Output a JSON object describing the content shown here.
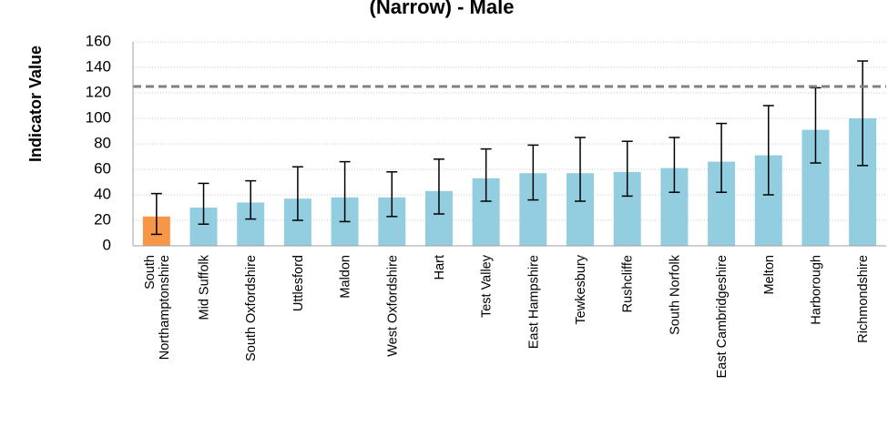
{
  "chart_data": {
    "type": "bar",
    "title": "(Narrow) - Male",
    "ylabel": "Indicator Value",
    "xlabel": "",
    "ylim": [
      0,
      160
    ],
    "yticks": [
      0,
      20,
      40,
      60,
      80,
      100,
      120,
      140,
      160
    ],
    "grid": true,
    "categories": [
      "South Northamptonshire",
      "Mid Suffolk",
      "South Oxfordshire",
      "Uttlesford",
      "Maldon",
      "West Oxfordshire",
      "Hart",
      "Test Valley",
      "East Hampshire",
      "Tewkesbury",
      "Rushcliffe",
      "South Norfolk",
      "East Cambridgeshire",
      "Melton",
      "Harborough",
      "Richmondshire"
    ],
    "category_lines": [
      [
        "South",
        "Northamptonshire"
      ],
      [
        "Mid Suffolk"
      ],
      [
        "South Oxfordshire"
      ],
      [
        "Uttlesford"
      ],
      [
        "Maldon"
      ],
      [
        "West Oxfordshire"
      ],
      [
        "Hart"
      ],
      [
        "Test Valley"
      ],
      [
        "East Hampshire"
      ],
      [
        "Tewkesbury"
      ],
      [
        "Rushcliffe"
      ],
      [
        "South Norfolk"
      ],
      [
        "East Cambridgeshire"
      ],
      [
        "Melton"
      ],
      [
        "Harborough"
      ],
      [
        "Richmondshire"
      ]
    ],
    "values": [
      23,
      30,
      34,
      37,
      38,
      38,
      43,
      53,
      57,
      57,
      58,
      61,
      66,
      71,
      91,
      100
    ],
    "error_low": [
      9,
      17,
      21,
      20,
      19,
      23,
      25,
      35,
      36,
      35,
      39,
      42,
      42,
      40,
      65,
      63
    ],
    "error_high": [
      41,
      49,
      51,
      62,
      66,
      58,
      68,
      76,
      79,
      85,
      82,
      85,
      96,
      110,
      124,
      145
    ],
    "highlight_index": 0,
    "reference_line": 125,
    "colors": {
      "bar": "#92cde0",
      "highlight": "#f79646",
      "error_bar": "#000000",
      "reference_line": "#808080"
    }
  }
}
